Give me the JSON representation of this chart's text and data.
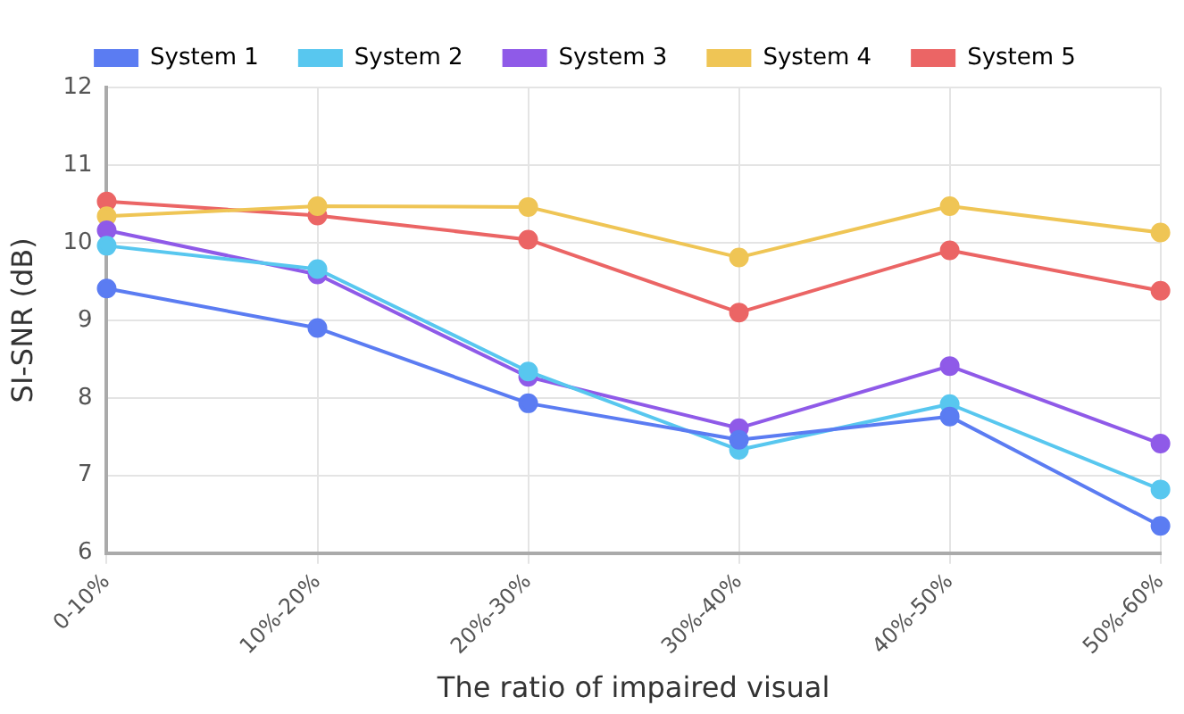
{
  "chart_data": {
    "type": "line",
    "xlabel": "The ratio of impaired visual",
    "ylabel": "SI-SNR (dB)",
    "categories": [
      "0-10%",
      "10%-20%",
      "20%-30%",
      "30%-40%",
      "40%-50%",
      "50%-60%"
    ],
    "series": [
      {
        "name": "System 1",
        "color": "#5b7cf2",
        "values": [
          9.41,
          8.9,
          7.93,
          7.46,
          7.76,
          6.35
        ]
      },
      {
        "name": "System 2",
        "color": "#58c7ef",
        "values": [
          9.96,
          9.66,
          8.34,
          7.33,
          7.92,
          6.82
        ]
      },
      {
        "name": "System 3",
        "color": "#8f5ae8",
        "values": [
          10.16,
          9.59,
          8.27,
          7.61,
          8.41,
          7.41
        ]
      },
      {
        "name": "System 4",
        "color": "#efc555",
        "values": [
          10.34,
          10.47,
          10.46,
          9.81,
          10.47,
          10.13
        ]
      },
      {
        "name": "System 5",
        "color": "#eb6565",
        "values": [
          10.53,
          10.35,
          10.04,
          9.1,
          9.9,
          9.38
        ]
      }
    ],
    "ylim": [
      6,
      12
    ],
    "yticks": [
      6,
      7,
      8,
      9,
      10,
      11,
      12
    ],
    "grid": true,
    "legend": "top",
    "marker": "circle",
    "line_style": "solid"
  }
}
